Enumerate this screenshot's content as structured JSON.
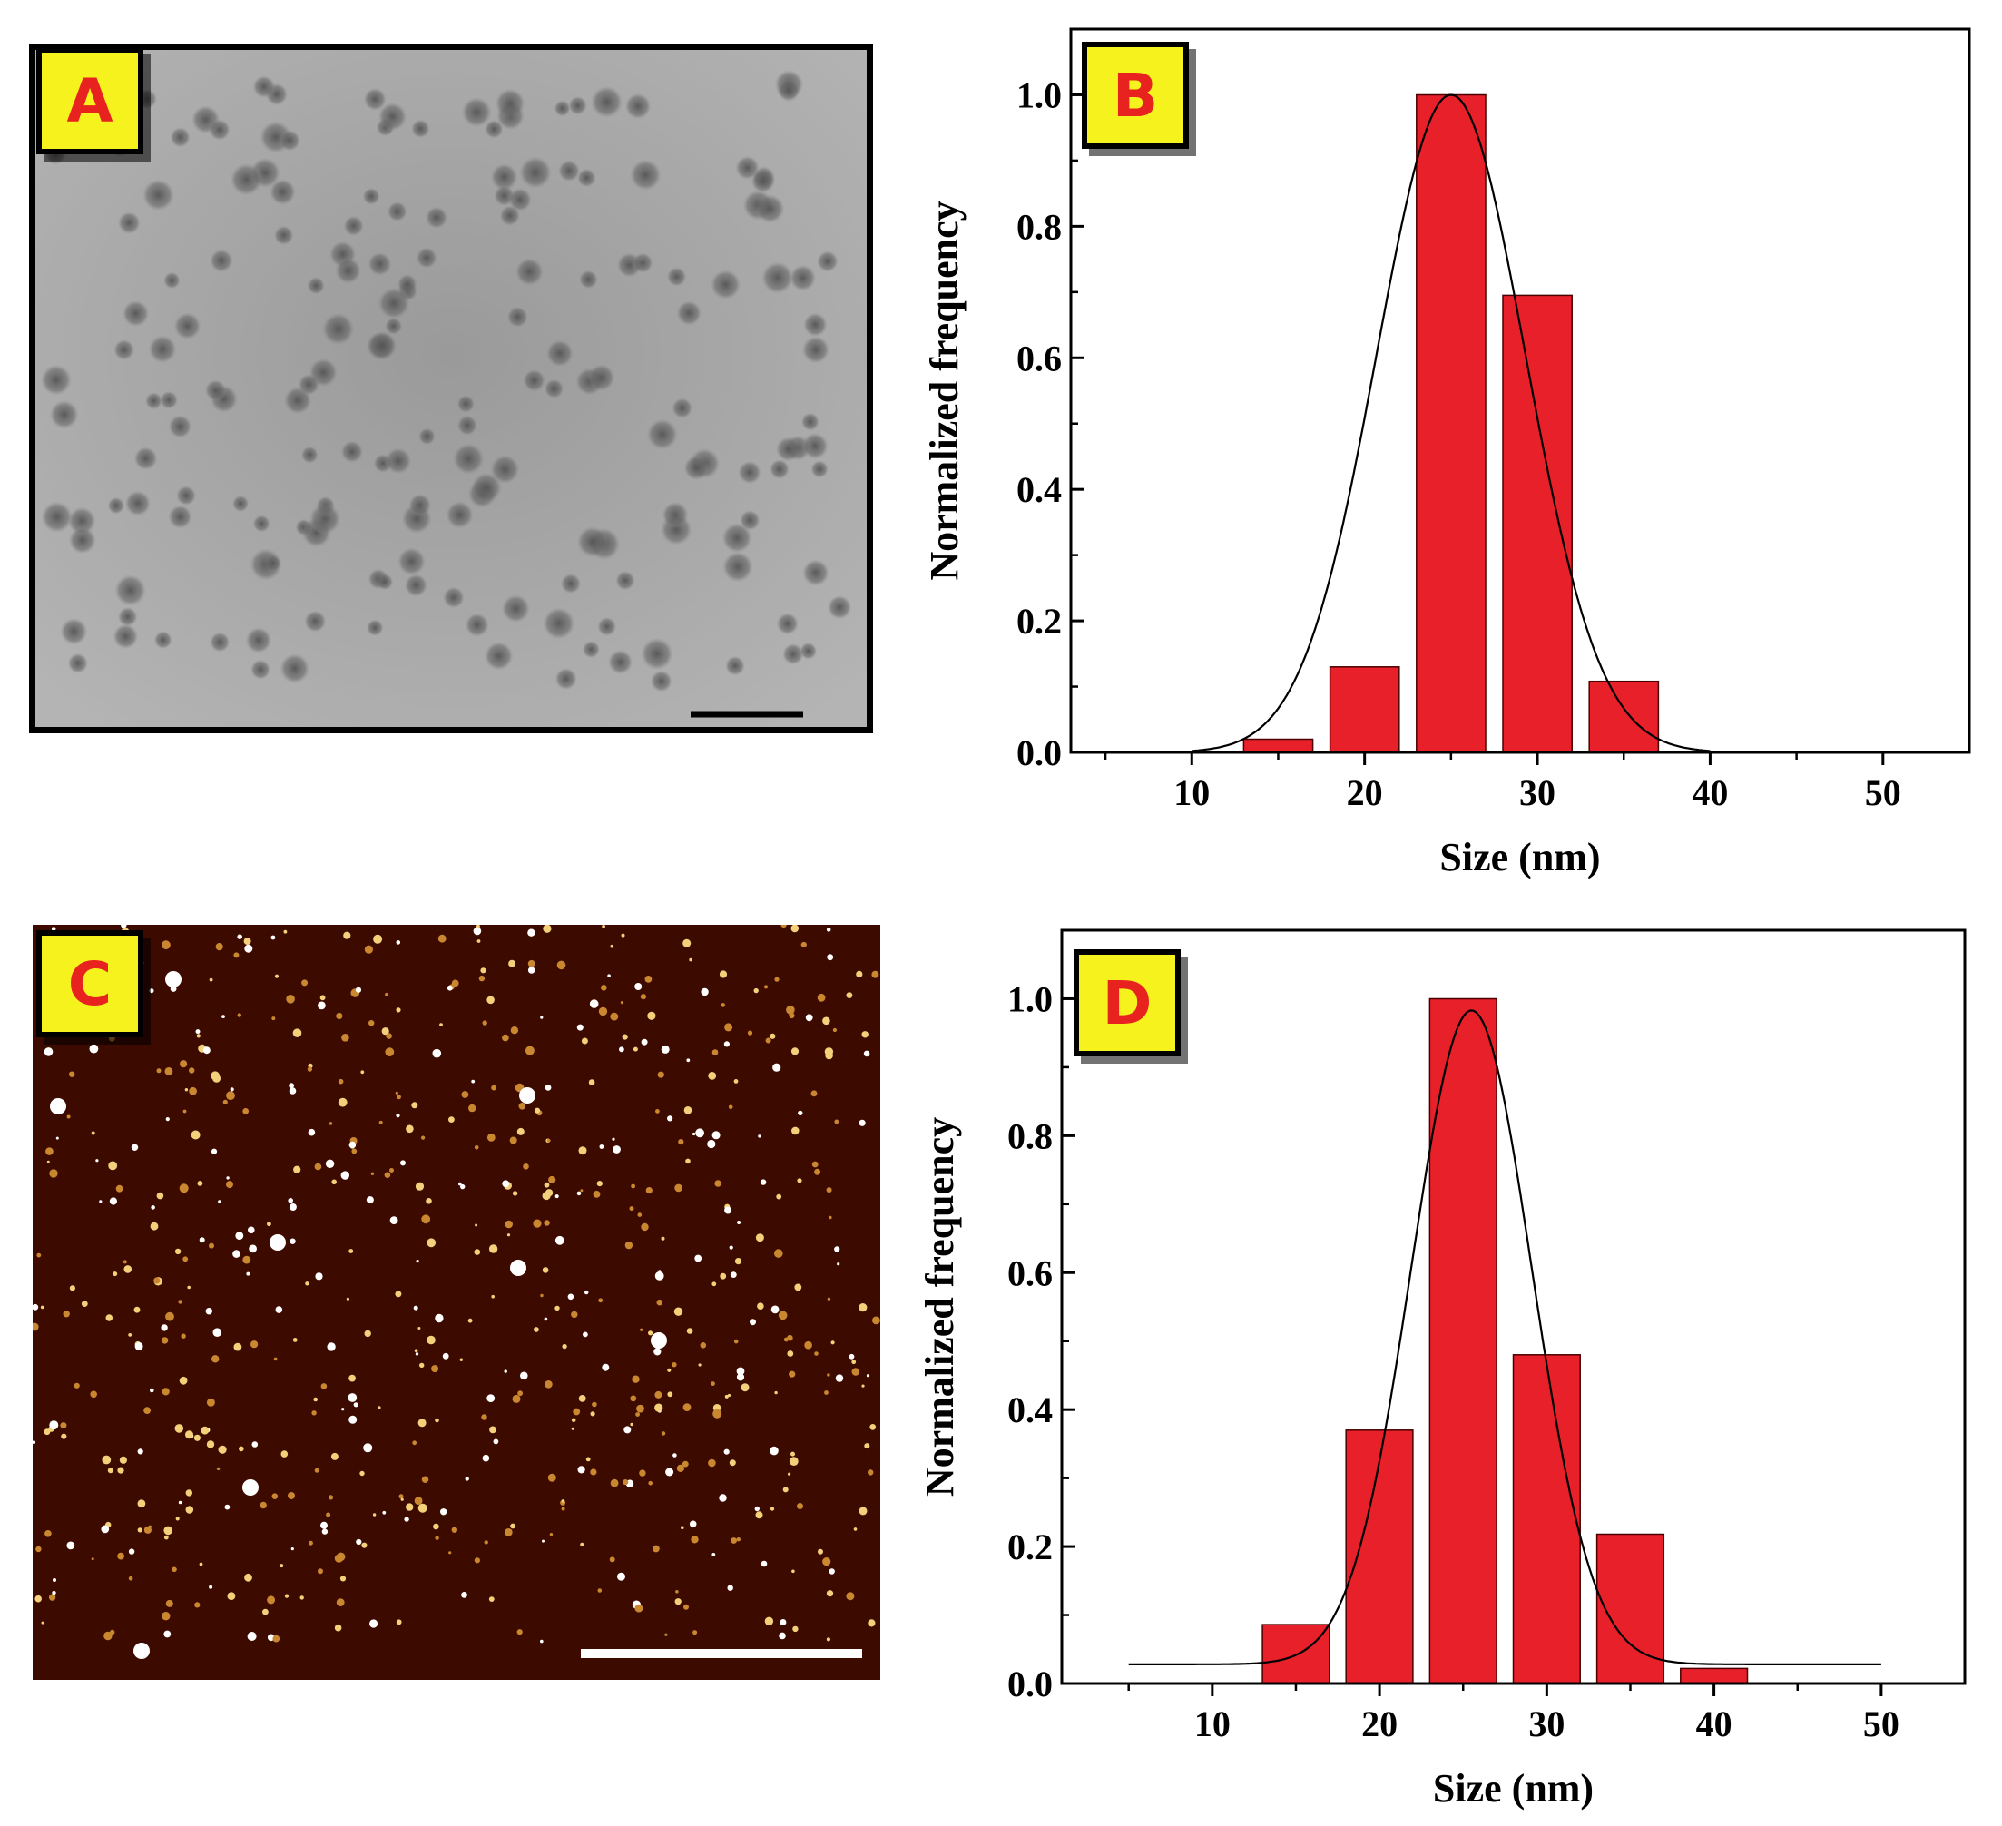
{
  "panels": {
    "a": {
      "label": "A",
      "kind": "TEM micrograph"
    },
    "b": {
      "label": "B"
    },
    "c": {
      "label": "C",
      "kind": "AFM height image"
    },
    "d": {
      "label": "D"
    }
  },
  "colors": {
    "bar_fill": "#e8202a",
    "bar_edge": "#4a0000",
    "fit_line": "#000000",
    "label_bg": "#f6f21e",
    "label_text": "#e8221f",
    "tem_background": "#a3a3a3",
    "afm_background": "#3d0a00"
  },
  "chart_data": [
    {
      "panel": "B",
      "type": "bar",
      "xlabel": "Size (nm)",
      "ylabel": "Normalized frequency",
      "xlim": [
        3,
        55
      ],
      "ylim": [
        0,
        1.1
      ],
      "xticks": [
        10,
        20,
        30,
        40,
        50
      ],
      "yticks": [
        0.0,
        0.2,
        0.4,
        0.6,
        0.8,
        1.0
      ],
      "xtick_labels": [
        "10",
        "20",
        "30",
        "40",
        "50"
      ],
      "ytick_labels": [
        "0.0",
        "0.2",
        "0.4",
        "0.6",
        "0.8",
        "1.0"
      ],
      "bin_width": 4,
      "categories": [
        "15",
        "20",
        "25",
        "30",
        "35"
      ],
      "values": [
        0.02,
        0.13,
        1.0,
        0.695,
        0.108
      ],
      "fit": {
        "type": "gaussian",
        "center": 25.0,
        "sigma": 4.3,
        "amplitude": 1.0,
        "baseline": 0.0,
        "x_range": [
          10,
          40
        ]
      }
    },
    {
      "panel": "D",
      "type": "bar",
      "xlabel": "Size (nm)",
      "ylabel": "Normalized frequency",
      "xlim": [
        1,
        55
      ],
      "ylim": [
        0,
        1.1
      ],
      "xticks": [
        10,
        20,
        30,
        40,
        50
      ],
      "yticks": [
        0.0,
        0.2,
        0.4,
        0.6,
        0.8,
        1.0
      ],
      "xtick_labels": [
        "10",
        "20",
        "30",
        "40",
        "50"
      ],
      "ytick_labels": [
        "0.0",
        "0.2",
        "0.4",
        "0.6",
        "0.8",
        "1.0"
      ],
      "bin_width": 4,
      "categories": [
        "15",
        "20",
        "25",
        "30",
        "35",
        "40"
      ],
      "values": [
        0.086,
        0.37,
        1.0,
        0.48,
        0.218,
        0.022
      ],
      "fit": {
        "type": "gaussian",
        "center": 25.5,
        "sigma": 3.6,
        "amplitude": 0.955,
        "baseline": 0.028,
        "x_range": [
          5,
          50
        ]
      }
    }
  ]
}
